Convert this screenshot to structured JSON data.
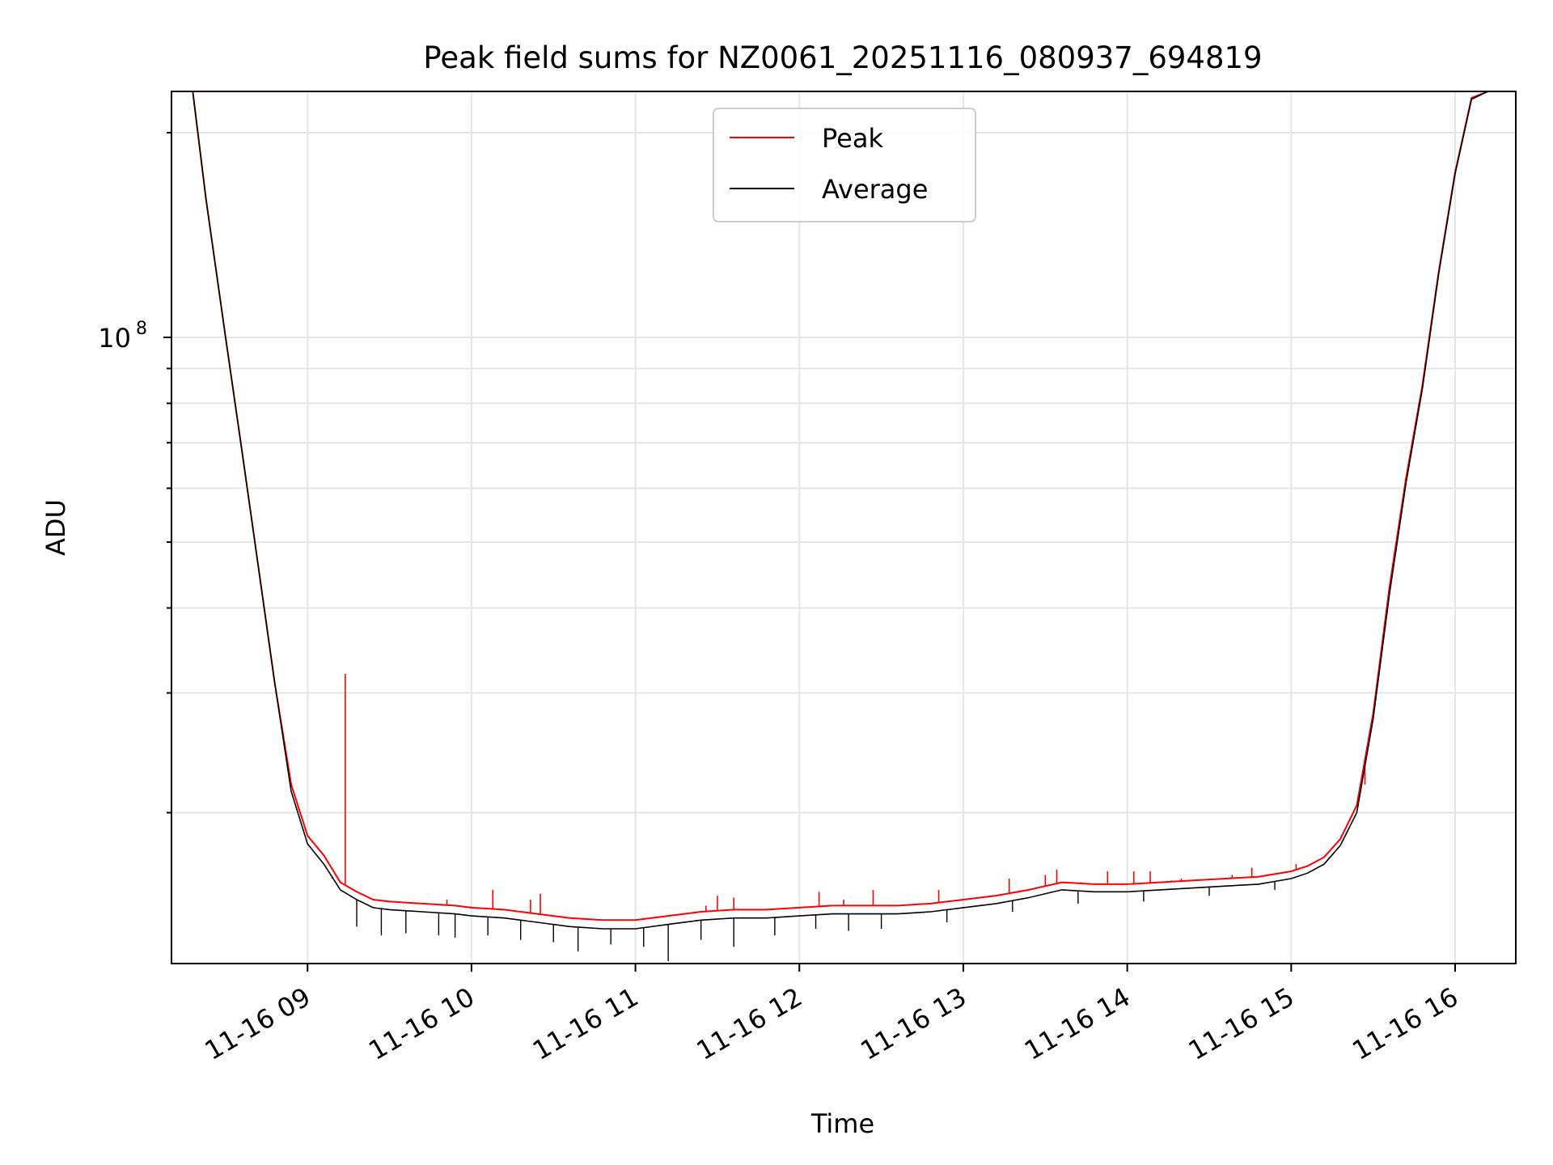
{
  "chart_data": {
    "type": "line",
    "title": "Peak field sums for NZ0061_20251116_080937_694819",
    "xlabel": "Time",
    "ylabel": "ADU",
    "yscale": "log",
    "ylim": [
      12000000,
      230000000
    ],
    "xlim": [
      8.17,
      16.37
    ],
    "x_ticks": [
      {
        "x": 9,
        "label": "11-16 09"
      },
      {
        "x": 10,
        "label": "11-16 10"
      },
      {
        "x": 11,
        "label": "11-16 11"
      },
      {
        "x": 12,
        "label": "11-16 12"
      },
      {
        "x": 13,
        "label": "11-16 13"
      },
      {
        "x": 14,
        "label": "11-16 14"
      },
      {
        "x": 15,
        "label": "11-16 15"
      },
      {
        "x": 16,
        "label": "11-16 16"
      }
    ],
    "y_major_ticks": [
      {
        "y": 100000000,
        "base": "10",
        "exp": "8"
      }
    ],
    "y_minor_ticks": [
      20000000,
      30000000,
      40000000,
      50000000,
      60000000,
      70000000,
      80000000,
      90000000,
      200000000
    ],
    "grid": true,
    "legend_position": "top-center",
    "colors": {
      "peak": "#ff0000",
      "average": "#000000",
      "grid": "#e6e6e6"
    },
    "series": [
      {
        "name": "Peak",
        "color": "#ff0000",
        "x": [
          8.3,
          8.38,
          8.5,
          8.6,
          8.7,
          8.8,
          8.9,
          9.0,
          9.1,
          9.2,
          9.3,
          9.4,
          9.5,
          9.7,
          9.9,
          10.0,
          10.2,
          10.4,
          10.6,
          10.8,
          11.0,
          11.2,
          11.4,
          11.6,
          11.8,
          12.0,
          12.2,
          12.4,
          12.6,
          12.8,
          13.0,
          13.2,
          13.4,
          13.6,
          13.8,
          14.0,
          14.2,
          14.4,
          14.6,
          14.8,
          15.0,
          15.1,
          15.2,
          15.3,
          15.4,
          15.5,
          15.6,
          15.7,
          15.8,
          15.9,
          16.0,
          16.1,
          16.2
        ],
        "values": [
          230000000,
          160000000,
          100000000,
          68000000,
          46000000,
          31000000,
          22000000,
          18500000,
          17300000,
          15800000,
          15300000,
          14900000,
          14800000,
          14700000,
          14600000,
          14500000,
          14400000,
          14200000,
          14000000,
          13900000,
          13900000,
          14100000,
          14300000,
          14400000,
          14400000,
          14500000,
          14600000,
          14600000,
          14600000,
          14700000,
          14900000,
          15100000,
          15400000,
          15800000,
          15700000,
          15700000,
          15800000,
          15900000,
          16000000,
          16100000,
          16400000,
          16700000,
          17200000,
          18300000,
          20500000,
          28000000,
          43000000,
          62000000,
          85000000,
          125000000,
          175000000,
          225000000,
          230000000
        ],
        "spikes": [
          {
            "x": 9.23,
            "value": 32000000
          },
          {
            "x": 9.85,
            "value": 14900000
          },
          {
            "x": 10.13,
            "value": 15400000
          },
          {
            "x": 10.36,
            "value": 14900000
          },
          {
            "x": 10.42,
            "value": 15200000
          },
          {
            "x": 11.43,
            "value": 14600000
          },
          {
            "x": 11.5,
            "value": 15100000
          },
          {
            "x": 11.6,
            "value": 15000000
          },
          {
            "x": 12.12,
            "value": 15300000
          },
          {
            "x": 12.27,
            "value": 14900000
          },
          {
            "x": 12.45,
            "value": 15400000
          },
          {
            "x": 12.85,
            "value": 15400000
          },
          {
            "x": 13.28,
            "value": 16000000
          },
          {
            "x": 13.5,
            "value": 16200000
          },
          {
            "x": 13.57,
            "value": 16500000
          },
          {
            "x": 13.72,
            "value": 15800000
          },
          {
            "x": 13.88,
            "value": 16400000
          },
          {
            "x": 14.04,
            "value": 16400000
          },
          {
            "x": 14.14,
            "value": 16400000
          },
          {
            "x": 14.27,
            "value": 15900000
          },
          {
            "x": 14.33,
            "value": 16000000
          },
          {
            "x": 14.64,
            "value": 16200000
          },
          {
            "x": 14.76,
            "value": 16600000
          },
          {
            "x": 15.03,
            "value": 16800000
          },
          {
            "x": 15.36,
            "value": 19500000
          },
          {
            "x": 15.45,
            "value": 22000000
          }
        ]
      },
      {
        "name": "Average",
        "color": "#000000",
        "x": [
          8.3,
          8.38,
          8.5,
          8.6,
          8.7,
          8.8,
          8.9,
          9.0,
          9.1,
          9.2,
          9.3,
          9.4,
          9.5,
          9.7,
          9.9,
          10.0,
          10.2,
          10.4,
          10.6,
          10.8,
          11.0,
          11.2,
          11.4,
          11.6,
          11.8,
          12.0,
          12.2,
          12.4,
          12.6,
          12.8,
          13.0,
          13.2,
          13.4,
          13.6,
          13.8,
          14.0,
          14.2,
          14.4,
          14.6,
          14.8,
          15.0,
          15.1,
          15.2,
          15.3,
          15.4,
          15.5,
          15.6,
          15.7,
          15.8,
          15.9,
          16.0,
          16.1,
          16.2
        ],
        "values": [
          230000000,
          160000000,
          100000000,
          68000000,
          46000000,
          31000000,
          21500000,
          18000000,
          16800000,
          15400000,
          14900000,
          14500000,
          14400000,
          14300000,
          14200000,
          14100000,
          14000000,
          13800000,
          13600000,
          13500000,
          13500000,
          13700000,
          13900000,
          14000000,
          14000000,
          14100000,
          14200000,
          14200000,
          14200000,
          14300000,
          14500000,
          14700000,
          15000000,
          15400000,
          15300000,
          15300000,
          15400000,
          15500000,
          15600000,
          15700000,
          16000000,
          16300000,
          16800000,
          17900000,
          20000000,
          27500000,
          42000000,
          61000000,
          84000000,
          124000000,
          174000000,
          224000000,
          230000000
        ],
        "spikes_down": [
          {
            "x": 9.15,
            "value": 16000000
          },
          {
            "x": 9.3,
            "value": 13600000
          },
          {
            "x": 9.45,
            "value": 13200000
          },
          {
            "x": 9.6,
            "value": 13300000
          },
          {
            "x": 9.8,
            "value": 13200000
          },
          {
            "x": 9.9,
            "value": 13100000
          },
          {
            "x": 10.1,
            "value": 13200000
          },
          {
            "x": 10.3,
            "value": 13000000
          },
          {
            "x": 10.5,
            "value": 12900000
          },
          {
            "x": 10.65,
            "value": 12500000
          },
          {
            "x": 10.85,
            "value": 12800000
          },
          {
            "x": 11.05,
            "value": 12700000
          },
          {
            "x": 11.2,
            "value": 12100000
          },
          {
            "x": 11.4,
            "value": 13000000
          },
          {
            "x": 11.6,
            "value": 12700000
          },
          {
            "x": 11.85,
            "value": 13200000
          },
          {
            "x": 12.1,
            "value": 13500000
          },
          {
            "x": 12.3,
            "value": 13400000
          },
          {
            "x": 12.5,
            "value": 13500000
          },
          {
            "x": 12.9,
            "value": 13800000
          },
          {
            "x": 13.3,
            "value": 14300000
          },
          {
            "x": 13.7,
            "value": 14700000
          },
          {
            "x": 14.1,
            "value": 14800000
          },
          {
            "x": 14.5,
            "value": 15100000
          },
          {
            "x": 14.9,
            "value": 15400000
          }
        ]
      }
    ]
  }
}
